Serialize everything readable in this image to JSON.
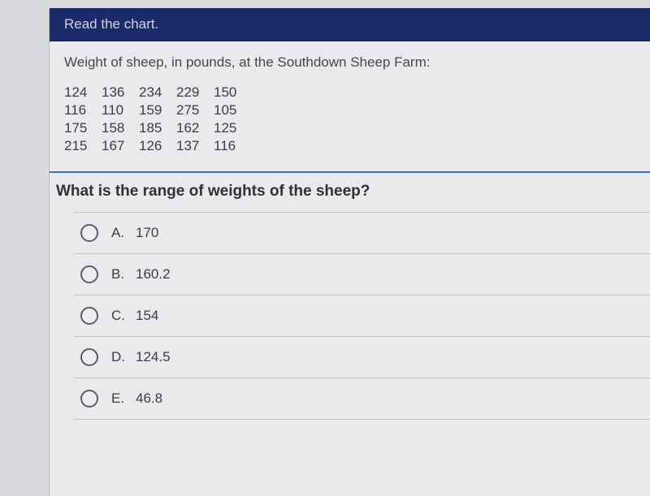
{
  "header": {
    "title": "Read the chart.",
    "bg_color": "#1a2a6b",
    "text_color": "#d0d4e0"
  },
  "prompt": {
    "text": "Weight of sheep, in pounds, at the Southdown Sheep Farm:"
  },
  "data_table": {
    "rows": [
      [
        "124",
        "136",
        "234",
        "229",
        "150"
      ],
      [
        "116",
        "110",
        "159",
        "275",
        "105"
      ],
      [
        "175",
        "158",
        "185",
        "162",
        "125"
      ],
      [
        "215",
        "167",
        "126",
        "137",
        "116"
      ]
    ]
  },
  "question": {
    "text": "What is the range of weights of the sheep?"
  },
  "options": [
    {
      "letter": "A.",
      "value": "170"
    },
    {
      "letter": "B.",
      "value": "160.2"
    },
    {
      "letter": "C.",
      "value": "154"
    },
    {
      "letter": "D.",
      "value": "124.5"
    },
    {
      "letter": "E.",
      "value": "46.8"
    }
  ],
  "styling": {
    "page_bg": "#e9eaec",
    "body_bg": "#d8dade",
    "divider_color": "#3b6db8",
    "option_border": "#c2c4ca",
    "radio_border": "#5a5d65",
    "text_color": "#3a3d45",
    "question_color": "#2f3138"
  }
}
